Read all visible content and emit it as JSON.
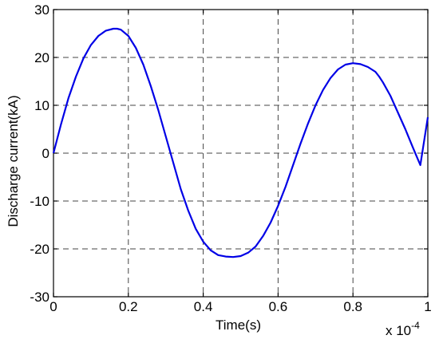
{
  "chart_data": {
    "type": "line",
    "title": "",
    "xlabel": "Time(s)",
    "ylabel": "Discharge current(kA)",
    "x_multiplier_label": "x 10",
    "x_multiplier_exponent": "-4",
    "xlim": [
      0,
      1
    ],
    "ylim": [
      -30,
      30
    ],
    "xticks": [
      0,
      0.2,
      0.4,
      0.6,
      0.8,
      1
    ],
    "xtick_labels": [
      "0",
      "0.2",
      "0.4",
      "0.6",
      "0.8",
      "1"
    ],
    "yticks": [
      -30,
      -20,
      -10,
      0,
      10,
      20,
      30
    ],
    "ytick_labels": [
      "-30",
      "-20",
      "-10",
      "0",
      "10",
      "20",
      "30"
    ],
    "grid": true,
    "series": [
      {
        "color": "#0000e6",
        "x": [
          0,
          0.02,
          0.04,
          0.06,
          0.08,
          0.1,
          0.12,
          0.14,
          0.16,
          0.17,
          0.18,
          0.2,
          0.22,
          0.24,
          0.26,
          0.28,
          0.3,
          0.32,
          0.34,
          0.36,
          0.38,
          0.4,
          0.42,
          0.44,
          0.46,
          0.48,
          0.5,
          0.52,
          0.54,
          0.56,
          0.58,
          0.6,
          0.62,
          0.64,
          0.66,
          0.68,
          0.7,
          0.72,
          0.74,
          0.76,
          0.78,
          0.8,
          0.82,
          0.84,
          0.86,
          0.87,
          0.88,
          0.9,
          0.92,
          0.94,
          0.96,
          0.98,
          1.0
        ],
        "y": [
          0,
          6,
          11.5,
          16,
          19.8,
          22.6,
          24.5,
          25.6,
          26.0,
          26.0,
          25.8,
          24.5,
          22.0,
          18.5,
          14.0,
          9.0,
          3.5,
          -2.0,
          -7.5,
          -12.0,
          -15.8,
          -18.5,
          -20.3,
          -21.3,
          -21.6,
          -21.7,
          -21.5,
          -20.8,
          -19.5,
          -17.3,
          -14.5,
          -11.0,
          -7.0,
          -2.5,
          2.0,
          6.2,
          10.0,
          13.2,
          15.7,
          17.5,
          18.5,
          18.8,
          18.6,
          18.0,
          17.0,
          16.0,
          14.8,
          12.0,
          8.5,
          5.0,
          1.2,
          -2.5,
          7.5
        ]
      }
    ]
  }
}
